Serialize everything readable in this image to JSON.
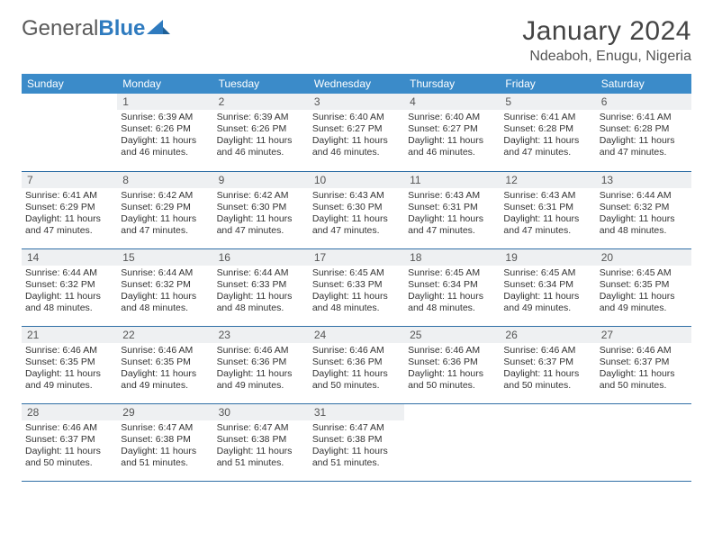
{
  "logo": {
    "word1": "General",
    "word2": "Blue"
  },
  "title": "January 2024",
  "location": "Ndeaboh, Enugu, Nigeria",
  "colors": {
    "header_bg": "#3b8bc9",
    "header_text": "#ffffff",
    "daynum_bg": "#eef0f2",
    "row_border": "#2f6fa6",
    "logo_gray": "#5a5a5a",
    "logo_blue": "#2f7bbf"
  },
  "weekdays": [
    "Sunday",
    "Monday",
    "Tuesday",
    "Wednesday",
    "Thursday",
    "Friday",
    "Saturday"
  ],
  "weeks": [
    [
      {
        "n": "",
        "lines": [
          "",
          "",
          "",
          ""
        ]
      },
      {
        "n": "1",
        "lines": [
          "Sunrise: 6:39 AM",
          "Sunset: 6:26 PM",
          "Daylight: 11 hours",
          "and 46 minutes."
        ]
      },
      {
        "n": "2",
        "lines": [
          "Sunrise: 6:39 AM",
          "Sunset: 6:26 PM",
          "Daylight: 11 hours",
          "and 46 minutes."
        ]
      },
      {
        "n": "3",
        "lines": [
          "Sunrise: 6:40 AM",
          "Sunset: 6:27 PM",
          "Daylight: 11 hours",
          "and 46 minutes."
        ]
      },
      {
        "n": "4",
        "lines": [
          "Sunrise: 6:40 AM",
          "Sunset: 6:27 PM",
          "Daylight: 11 hours",
          "and 46 minutes."
        ]
      },
      {
        "n": "5",
        "lines": [
          "Sunrise: 6:41 AM",
          "Sunset: 6:28 PM",
          "Daylight: 11 hours",
          "and 47 minutes."
        ]
      },
      {
        "n": "6",
        "lines": [
          "Sunrise: 6:41 AM",
          "Sunset: 6:28 PM",
          "Daylight: 11 hours",
          "and 47 minutes."
        ]
      }
    ],
    [
      {
        "n": "7",
        "lines": [
          "Sunrise: 6:41 AM",
          "Sunset: 6:29 PM",
          "Daylight: 11 hours",
          "and 47 minutes."
        ]
      },
      {
        "n": "8",
        "lines": [
          "Sunrise: 6:42 AM",
          "Sunset: 6:29 PM",
          "Daylight: 11 hours",
          "and 47 minutes."
        ]
      },
      {
        "n": "9",
        "lines": [
          "Sunrise: 6:42 AM",
          "Sunset: 6:30 PM",
          "Daylight: 11 hours",
          "and 47 minutes."
        ]
      },
      {
        "n": "10",
        "lines": [
          "Sunrise: 6:43 AM",
          "Sunset: 6:30 PM",
          "Daylight: 11 hours",
          "and 47 minutes."
        ]
      },
      {
        "n": "11",
        "lines": [
          "Sunrise: 6:43 AM",
          "Sunset: 6:31 PM",
          "Daylight: 11 hours",
          "and 47 minutes."
        ]
      },
      {
        "n": "12",
        "lines": [
          "Sunrise: 6:43 AM",
          "Sunset: 6:31 PM",
          "Daylight: 11 hours",
          "and 47 minutes."
        ]
      },
      {
        "n": "13",
        "lines": [
          "Sunrise: 6:44 AM",
          "Sunset: 6:32 PM",
          "Daylight: 11 hours",
          "and 48 minutes."
        ]
      }
    ],
    [
      {
        "n": "14",
        "lines": [
          "Sunrise: 6:44 AM",
          "Sunset: 6:32 PM",
          "Daylight: 11 hours",
          "and 48 minutes."
        ]
      },
      {
        "n": "15",
        "lines": [
          "Sunrise: 6:44 AM",
          "Sunset: 6:32 PM",
          "Daylight: 11 hours",
          "and 48 minutes."
        ]
      },
      {
        "n": "16",
        "lines": [
          "Sunrise: 6:44 AM",
          "Sunset: 6:33 PM",
          "Daylight: 11 hours",
          "and 48 minutes."
        ]
      },
      {
        "n": "17",
        "lines": [
          "Sunrise: 6:45 AM",
          "Sunset: 6:33 PM",
          "Daylight: 11 hours",
          "and 48 minutes."
        ]
      },
      {
        "n": "18",
        "lines": [
          "Sunrise: 6:45 AM",
          "Sunset: 6:34 PM",
          "Daylight: 11 hours",
          "and 48 minutes."
        ]
      },
      {
        "n": "19",
        "lines": [
          "Sunrise: 6:45 AM",
          "Sunset: 6:34 PM",
          "Daylight: 11 hours",
          "and 49 minutes."
        ]
      },
      {
        "n": "20",
        "lines": [
          "Sunrise: 6:45 AM",
          "Sunset: 6:35 PM",
          "Daylight: 11 hours",
          "and 49 minutes."
        ]
      }
    ],
    [
      {
        "n": "21",
        "lines": [
          "Sunrise: 6:46 AM",
          "Sunset: 6:35 PM",
          "Daylight: 11 hours",
          "and 49 minutes."
        ]
      },
      {
        "n": "22",
        "lines": [
          "Sunrise: 6:46 AM",
          "Sunset: 6:35 PM",
          "Daylight: 11 hours",
          "and 49 minutes."
        ]
      },
      {
        "n": "23",
        "lines": [
          "Sunrise: 6:46 AM",
          "Sunset: 6:36 PM",
          "Daylight: 11 hours",
          "and 49 minutes."
        ]
      },
      {
        "n": "24",
        "lines": [
          "Sunrise: 6:46 AM",
          "Sunset: 6:36 PM",
          "Daylight: 11 hours",
          "and 50 minutes."
        ]
      },
      {
        "n": "25",
        "lines": [
          "Sunrise: 6:46 AM",
          "Sunset: 6:36 PM",
          "Daylight: 11 hours",
          "and 50 minutes."
        ]
      },
      {
        "n": "26",
        "lines": [
          "Sunrise: 6:46 AM",
          "Sunset: 6:37 PM",
          "Daylight: 11 hours",
          "and 50 minutes."
        ]
      },
      {
        "n": "27",
        "lines": [
          "Sunrise: 6:46 AM",
          "Sunset: 6:37 PM",
          "Daylight: 11 hours",
          "and 50 minutes."
        ]
      }
    ],
    [
      {
        "n": "28",
        "lines": [
          "Sunrise: 6:46 AM",
          "Sunset: 6:37 PM",
          "Daylight: 11 hours",
          "and 50 minutes."
        ]
      },
      {
        "n": "29",
        "lines": [
          "Sunrise: 6:47 AM",
          "Sunset: 6:38 PM",
          "Daylight: 11 hours",
          "and 51 minutes."
        ]
      },
      {
        "n": "30",
        "lines": [
          "Sunrise: 6:47 AM",
          "Sunset: 6:38 PM",
          "Daylight: 11 hours",
          "and 51 minutes."
        ]
      },
      {
        "n": "31",
        "lines": [
          "Sunrise: 6:47 AM",
          "Sunset: 6:38 PM",
          "Daylight: 11 hours",
          "and 51 minutes."
        ]
      },
      {
        "n": "",
        "lines": [
          "",
          "",
          "",
          ""
        ]
      },
      {
        "n": "",
        "lines": [
          "",
          "",
          "",
          ""
        ]
      },
      {
        "n": "",
        "lines": [
          "",
          "",
          "",
          ""
        ]
      }
    ]
  ]
}
